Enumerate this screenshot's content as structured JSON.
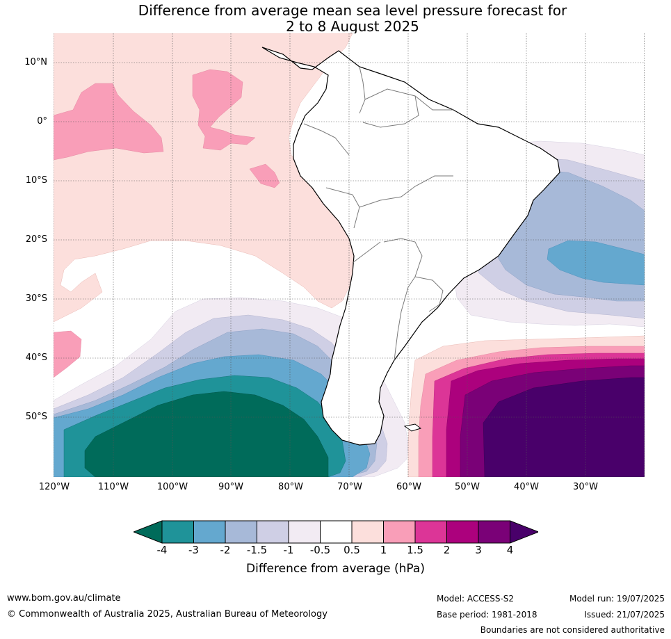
{
  "title_line1": "Difference from average mean sea level pressure forecast for",
  "title_line2": "2 to 8 August 2025",
  "lat_labels": [
    "10°N",
    "0°",
    "10°S",
    "20°S",
    "30°S",
    "40°S",
    "50°S"
  ],
  "lon_labels": [
    "120°W",
    "110°W",
    "100°W",
    "90°W",
    "80°W",
    "70°W",
    "60°W",
    "50°W",
    "40°W",
    "30°W"
  ],
  "colorbar": {
    "label": "Difference from average (hPa)",
    "ticks": [
      "-4",
      "-3",
      "-2",
      "-1.5",
      "-1",
      "-0.5",
      "0.5",
      "1",
      "1.5",
      "2",
      "3",
      "4"
    ],
    "colors": [
      "#006b5a",
      "#1f9399",
      "#64a8cf",
      "#a7b9d8",
      "#cfcfe5",
      "#f2ebf3",
      "#ffffff",
      "#fcdfdc",
      "#f99eb8",
      "#dc3597",
      "#ac017d",
      "#7a0177",
      "#49006a"
    ]
  },
  "footer": {
    "website": "www.bom.gov.au/climate",
    "copyright": "© Commonwealth of Australia 2025, Australian Bureau of Meteorology",
    "model": "Model: ACCESS-S2",
    "base_period": "Base period: 1981-2018",
    "model_run": "Model run: 19/07/2025",
    "issued": "Issued: 21/07/2025",
    "disclaimer": "Boundaries are not considered authoritative"
  }
}
